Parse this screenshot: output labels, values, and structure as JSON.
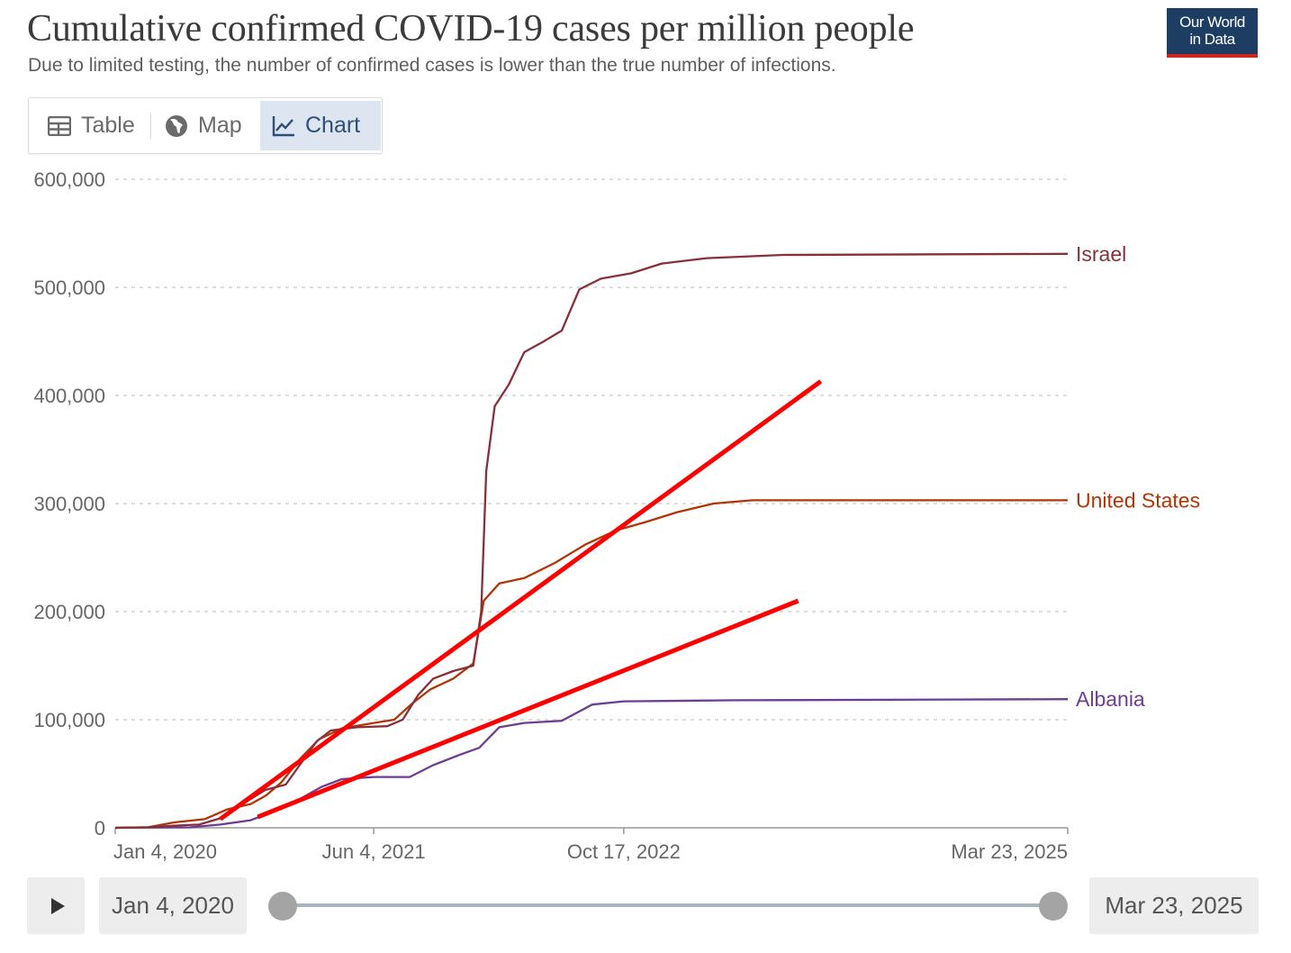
{
  "header": {
    "title": "Cumulative confirmed COVID-19 cases per million people",
    "subtitle": "Due to limited testing, the number of confirmed cases is lower than the true number of infections.",
    "logo_line1": "Our World",
    "logo_line2": "in Data"
  },
  "tabs": [
    {
      "label": "Table",
      "icon": "table-icon",
      "active": false
    },
    {
      "label": "Map",
      "icon": "globe-icon",
      "active": false
    },
    {
      "label": "Chart",
      "icon": "line-chart-icon",
      "active": true
    }
  ],
  "chart_data": {
    "type": "line",
    "title": "Cumulative confirmed COVID-19 cases per million people",
    "xlabel": "",
    "ylabel": "",
    "ylim": [
      0,
      600000
    ],
    "y_ticks": [
      0,
      100000,
      200000,
      300000,
      400000,
      500000,
      600000
    ],
    "y_tick_labels": [
      "0",
      "100,000",
      "200,000",
      "300,000",
      "400,000",
      "500,000",
      "600,000"
    ],
    "x_ticks": [
      "2020-01-04",
      "2021-06-04",
      "2022-10-17",
      "2025-03-23"
    ],
    "x_tick_labels": [
      "Jan 4, 2020",
      "Jun 4, 2021",
      "Oct 17, 2022",
      "Mar 23, 2025"
    ],
    "xlim": [
      "2020-01-04",
      "2025-03-23"
    ],
    "grid": "horizontal-dashed",
    "legend": "line-end labels",
    "series": [
      {
        "name": "Israel",
        "color": "#883039",
        "points": [
          [
            "2020-01-04",
            0
          ],
          [
            "2020-03-10",
            500
          ],
          [
            "2020-05-01",
            2000
          ],
          [
            "2020-06-20",
            3000
          ],
          [
            "2020-08-10",
            10000
          ],
          [
            "2020-09-25",
            25000
          ],
          [
            "2020-10-30",
            35000
          ],
          [
            "2020-12-10",
            40000
          ],
          [
            "2021-01-10",
            60000
          ],
          [
            "2021-02-10",
            80000
          ],
          [
            "2021-03-10",
            90000
          ],
          [
            "2021-05-01",
            93000
          ],
          [
            "2021-07-01",
            94000
          ],
          [
            "2021-08-01",
            100000
          ],
          [
            "2021-09-01",
            123000
          ],
          [
            "2021-10-01",
            138000
          ],
          [
            "2021-11-10",
            145000
          ],
          [
            "2021-12-20",
            150000
          ],
          [
            "2022-01-05",
            200000
          ],
          [
            "2022-01-15",
            330000
          ],
          [
            "2022-02-01",
            390000
          ],
          [
            "2022-03-01",
            410000
          ],
          [
            "2022-04-01",
            440000
          ],
          [
            "2022-05-10",
            450000
          ],
          [
            "2022-06-15",
            460000
          ],
          [
            "2022-07-20",
            498000
          ],
          [
            "2022-09-01",
            508000
          ],
          [
            "2022-11-01",
            513000
          ],
          [
            "2023-01-01",
            522000
          ],
          [
            "2023-04-01",
            527000
          ],
          [
            "2023-09-01",
            530000
          ],
          [
            "2025-03-23",
            531000
          ]
        ]
      },
      {
        "name": "United States",
        "color": "#b13507",
        "points": [
          [
            "2020-01-04",
            0
          ],
          [
            "2020-03-10",
            500
          ],
          [
            "2020-05-01",
            5000
          ],
          [
            "2020-07-01",
            8000
          ],
          [
            "2020-08-15",
            17000
          ],
          [
            "2020-10-01",
            22000
          ],
          [
            "2020-11-01",
            30000
          ],
          [
            "2020-12-01",
            42000
          ],
          [
            "2021-01-10",
            65000
          ],
          [
            "2021-02-15",
            82000
          ],
          [
            "2021-04-01",
            92000
          ],
          [
            "2021-06-04",
            97000
          ],
          [
            "2021-07-15",
            100000
          ],
          [
            "2021-08-20",
            115000
          ],
          [
            "2021-09-25",
            128000
          ],
          [
            "2021-11-10",
            138000
          ],
          [
            "2021-12-20",
            152000
          ],
          [
            "2022-01-10",
            210000
          ],
          [
            "2022-02-10",
            226000
          ],
          [
            "2022-04-01",
            231000
          ],
          [
            "2022-06-01",
            245000
          ],
          [
            "2022-08-01",
            262000
          ],
          [
            "2022-10-01",
            275000
          ],
          [
            "2022-12-01",
            283000
          ],
          [
            "2023-02-01",
            292000
          ],
          [
            "2023-04-15",
            300000
          ],
          [
            "2023-07-01",
            303000
          ],
          [
            "2025-03-23",
            303000
          ]
        ]
      },
      {
        "name": "Albania",
        "color": "#6d3e91",
        "points": [
          [
            "2020-01-04",
            0
          ],
          [
            "2020-06-01",
            400
          ],
          [
            "2020-08-01",
            3000
          ],
          [
            "2020-10-01",
            7000
          ],
          [
            "2020-11-15",
            15000
          ],
          [
            "2021-01-01",
            25000
          ],
          [
            "2021-02-20",
            38000
          ],
          [
            "2021-04-01",
            45000
          ],
          [
            "2021-06-04",
            47000
          ],
          [
            "2021-08-15",
            47000
          ],
          [
            "2021-10-01",
            58000
          ],
          [
            "2021-11-20",
            67000
          ],
          [
            "2022-01-01",
            74000
          ],
          [
            "2022-02-10",
            93000
          ],
          [
            "2022-04-01",
            97000
          ],
          [
            "2022-06-15",
            99000
          ],
          [
            "2022-08-15",
            114000
          ],
          [
            "2022-10-17",
            117000
          ],
          [
            "2023-06-01",
            118000
          ],
          [
            "2025-03-23",
            119000
          ]
        ]
      }
    ],
    "annotations": [
      {
        "type": "line",
        "color": "#ff0000",
        "from": [
          "2020-08-01",
          8000
        ],
        "to": [
          "2023-11-15",
          413000
        ]
      },
      {
        "type": "line",
        "color": "#ff0000",
        "from": [
          "2020-10-15",
          10000
        ],
        "to": [
          "2023-10-01",
          210000
        ]
      }
    ]
  },
  "timeline": {
    "play_icon": "play-icon",
    "start_label": "Jan 4, 2020",
    "end_label": "Mar 23, 2025",
    "start_position": 0,
    "end_position": 1
  }
}
